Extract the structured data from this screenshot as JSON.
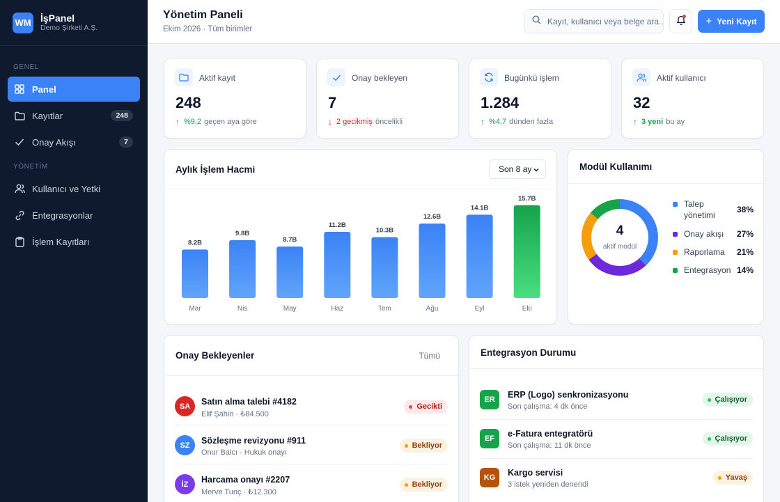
{
  "brand": {
    "initials": "WM",
    "name": "İşPanel",
    "company": "Demo Şirketi A.Ş."
  },
  "sidebar": {
    "sections": [
      {
        "label": "GENEL",
        "items": [
          {
            "label": "Panel",
            "icon": "grid-icon",
            "active": true
          },
          {
            "label": "Kayıtlar",
            "icon": "folder-icon",
            "count": "248"
          },
          {
            "label": "Onay Akışı",
            "icon": "check-icon",
            "count": "7"
          }
        ]
      },
      {
        "label": "YÖNETİM",
        "items": [
          {
            "label": "Kullanıcı ve Yetki",
            "icon": "users-icon"
          },
          {
            "label": "Entegrasyonlar",
            "icon": "link-icon"
          },
          {
            "label": "İşlem Kayıtları",
            "icon": "clipboard-icon"
          }
        ]
      }
    ]
  },
  "header": {
    "title": "Yönetim Paneli",
    "subtitle": "Ekim 2026 · Tüm birimler",
    "search_placeholder": "Kayıt, kullanıcı veya belge ara...",
    "new_button": "Yeni Kayıt"
  },
  "stats": [
    {
      "label": "Aktif kayıt",
      "icon": "folder-icon",
      "value": "248",
      "delta": "%9,2",
      "delta_text": "geçen aya göre",
      "trend": "up"
    },
    {
      "label": "Onay bekleyen",
      "icon": "check-icon",
      "value": "7",
      "delta": "2 gecikmiş",
      "delta_text": "öncelikli",
      "trend": "down"
    },
    {
      "label": "Bugünkü işlem",
      "icon": "refresh-icon",
      "value": "1.284",
      "delta": "%4,7",
      "delta_text": "dünden fazla",
      "trend": "up"
    },
    {
      "label": "Aktif kullanıcı",
      "icon": "users-icon",
      "value": "32",
      "delta": "3 yeni",
      "delta_text": "bu ay",
      "trend": "up"
    }
  ],
  "monthly": {
    "title": "Aylık İşlem Hacmi",
    "range_select": "Son 8 ay"
  },
  "chart_data": {
    "type": "bar",
    "categories": [
      "Mar",
      "Nis",
      "May",
      "Haz",
      "Tem",
      "Ağu",
      "Eyl",
      "Eki"
    ],
    "values": [
      8.2,
      9.8,
      8.7,
      11.2,
      10.3,
      12.6,
      14.1,
      15.7
    ],
    "value_labels": [
      "8.2B",
      "9.8B",
      "8.7B",
      "11.2B",
      "10.3B",
      "12.6B",
      "14.1B",
      "15.7B"
    ],
    "highlight_index": 7,
    "ylim": [
      0,
      16.5
    ],
    "colors": {
      "bar": "#3b82f6",
      "bar_light": "#60a5fa",
      "highlight": "#16a34a",
      "highlight_light": "#4ade80"
    }
  },
  "modules": {
    "title": "Modül Kullanımı",
    "center_value": "4",
    "center_label": "aktif modül",
    "items": [
      {
        "name": "Talep yönetimi",
        "pct": "38%",
        "value": 38,
        "color": "#3b82f6"
      },
      {
        "name": "Onay akışı",
        "pct": "27%",
        "value": 27,
        "color": "#6d28d9"
      },
      {
        "name": "Raporlama",
        "pct": "21%",
        "value": 21,
        "color": "#f59e0b"
      },
      {
        "name": "Entegrasyon",
        "pct": "14%",
        "value": 14,
        "color": "#16a34a"
      }
    ]
  },
  "approvals": {
    "title": "Onay Bekleyenler",
    "all_link": "Tümü",
    "items": [
      {
        "initials": "SA",
        "color": "#dc2626",
        "title": "Satın alma talebi #4182",
        "sub": "Elif Şahin · ₺84.500",
        "status": "Gecikti",
        "status_type": "late"
      },
      {
        "initials": "SZ",
        "color": "#3b82f6",
        "title": "Sözleşme revizyonu #911",
        "sub": "Onur Balcı · Hukuk onayı",
        "status": "Bekliyor",
        "status_type": "wait"
      },
      {
        "initials": "İZ",
        "color": "#7c3aed",
        "title": "Harcama onayı #2207",
        "sub": "Merve Tunç · ₺12.300",
        "status": "Bekliyor",
        "status_type": "wait"
      }
    ]
  },
  "integrations": {
    "title": "Entegrasyon Durumu",
    "items": [
      {
        "initials": "ER",
        "color": "#16a34a",
        "title": "ERP (Logo) senkronizasyonu",
        "sub": "Son çalışma: 4 dk önce",
        "status": "Çalışıyor",
        "status_type": "ok"
      },
      {
        "initials": "EF",
        "color": "#16a34a",
        "title": "e-Fatura entegratörü",
        "sub": "Son çalışma: 11 dk önce",
        "status": "Çalışıyor",
        "status_type": "ok"
      },
      {
        "initials": "KG",
        "color": "#b45309",
        "title": "Kargo servisi",
        "sub": "3 istek yeniden denendi",
        "status": "Yavaş",
        "status_type": "slow"
      }
    ]
  }
}
